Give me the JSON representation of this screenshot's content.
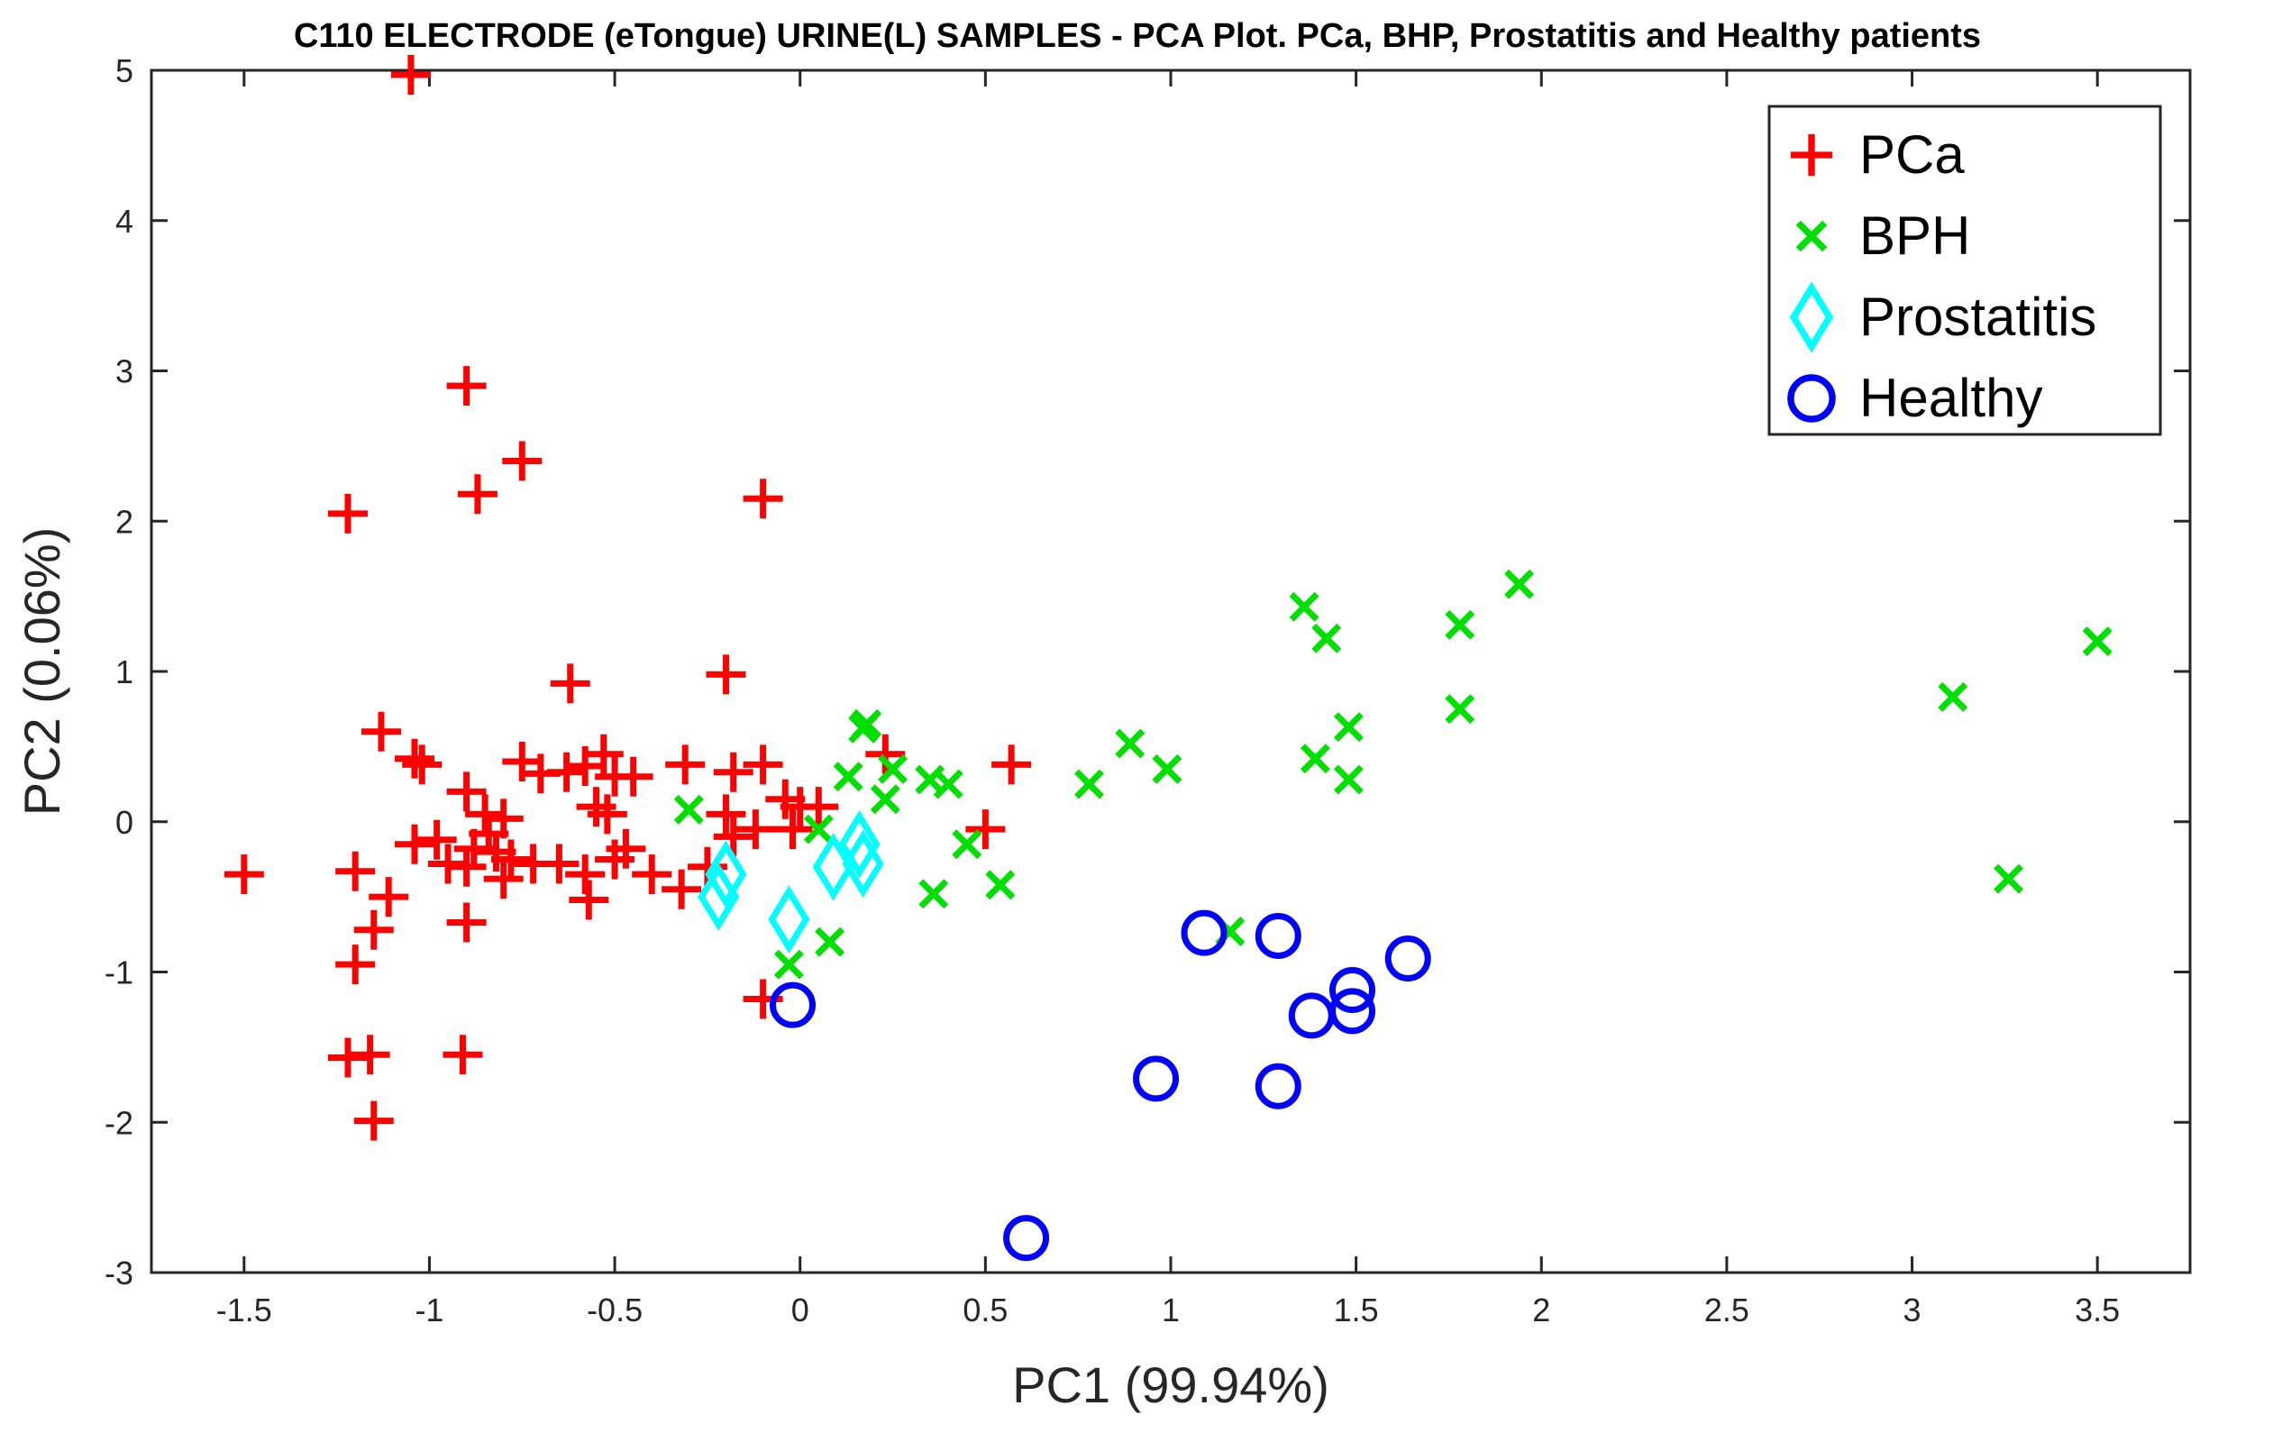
{
  "chart_data": {
    "type": "scatter",
    "title": "C110 ELECTRODE (eTongue) URINE(L) SAMPLES - PCA Plot.  PCa, BHP, Prostatitis and Healthy patients",
    "xlabel": "PC1 (99.94%)",
    "ylabel": "PC2 (0.06%)",
    "xlim": [
      -1.75,
      3.75
    ],
    "ylim": [
      -3,
      5
    ],
    "xticks": [
      -1.5,
      -1,
      -0.5,
      0,
      0.5,
      1,
      1.5,
      2,
      2.5,
      3,
      3.5
    ],
    "xtick_labels": [
      "-1.5",
      "-1",
      "-0.5",
      "0",
      "0.5",
      "1",
      "1.5",
      "2",
      "2.5",
      "3",
      "3.5"
    ],
    "yticks": [
      -3,
      -2,
      -1,
      0,
      1,
      2,
      3,
      4,
      5
    ],
    "ytick_labels": [
      "-3",
      "-2",
      "-1",
      "0",
      "1",
      "2",
      "3",
      "4",
      "5"
    ],
    "grid": false,
    "legend_position": "top-right",
    "series": [
      {
        "name": "PCa",
        "marker": "plus",
        "color": "#ff0000",
        "points": [
          [
            -1.05,
            4.97
          ],
          [
            -0.9,
            2.9
          ],
          [
            -0.75,
            2.4
          ],
          [
            -0.87,
            2.18
          ],
          [
            -1.22,
            2.05
          ],
          [
            -0.1,
            2.15
          ],
          [
            -0.2,
            0.98
          ],
          [
            -0.62,
            0.92
          ],
          [
            -1.13,
            0.6
          ],
          [
            -1.04,
            0.42
          ],
          [
            -1.02,
            0.38
          ],
          [
            -0.75,
            0.4
          ],
          [
            -0.7,
            0.32
          ],
          [
            -0.63,
            0.33
          ],
          [
            -0.58,
            0.37
          ],
          [
            -0.53,
            0.45
          ],
          [
            -0.5,
            0.3
          ],
          [
            -0.45,
            0.3
          ],
          [
            -0.31,
            0.38
          ],
          [
            -0.18,
            0.33
          ],
          [
            -0.1,
            0.38
          ],
          [
            -0.04,
            0.15
          ],
          [
            0.0,
            0.1
          ],
          [
            0.05,
            0.1
          ],
          [
            0.23,
            0.45
          ],
          [
            0.57,
            0.38
          ],
          [
            -0.9,
            0.2
          ],
          [
            -0.85,
            0.05
          ],
          [
            -0.8,
            0.02
          ],
          [
            -0.55,
            0.1
          ],
          [
            -0.52,
            0.05
          ],
          [
            -0.84,
            -0.08
          ],
          [
            -0.88,
            -0.18
          ],
          [
            -0.82,
            -0.2
          ],
          [
            -0.78,
            -0.25
          ],
          [
            -0.72,
            -0.28
          ],
          [
            -0.95,
            -0.28
          ],
          [
            -1.04,
            -0.15
          ],
          [
            -0.98,
            -0.12
          ],
          [
            -0.9,
            -0.3
          ],
          [
            -0.8,
            -0.38
          ],
          [
            -0.65,
            -0.28
          ],
          [
            -0.58,
            -0.35
          ],
          [
            -0.5,
            -0.25
          ],
          [
            -0.47,
            -0.18
          ],
          [
            -0.4,
            -0.35
          ],
          [
            -0.32,
            -0.45
          ],
          [
            -0.57,
            -0.52
          ],
          [
            -0.25,
            -0.3
          ],
          [
            -0.18,
            -0.1
          ],
          [
            -0.2,
            0.05
          ],
          [
            -0.12,
            -0.05
          ],
          [
            0.5,
            -0.05
          ],
          [
            -0.02,
            -0.05
          ],
          [
            -1.5,
            -0.35
          ],
          [
            -1.2,
            -0.33
          ],
          [
            -1.11,
            -0.5
          ],
          [
            -1.15,
            -0.72
          ],
          [
            -1.2,
            -0.95
          ],
          [
            -0.9,
            -0.67
          ],
          [
            -1.22,
            -1.57
          ],
          [
            -1.16,
            -1.55
          ],
          [
            -0.91,
            -1.55
          ],
          [
            -1.15,
            -1.99
          ],
          [
            -0.1,
            -1.18
          ]
        ]
      },
      {
        "name": "BPH",
        "marker": "x",
        "color": "#00e000",
        "points": [
          [
            -0.3,
            0.08
          ],
          [
            0.05,
            -0.05
          ],
          [
            0.13,
            0.3
          ],
          [
            0.17,
            0.62
          ],
          [
            0.18,
            0.65
          ],
          [
            0.23,
            0.15
          ],
          [
            0.25,
            0.35
          ],
          [
            0.35,
            0.28
          ],
          [
            0.4,
            0.25
          ],
          [
            0.45,
            -0.15
          ],
          [
            0.36,
            -0.48
          ],
          [
            0.54,
            -0.42
          ],
          [
            0.08,
            -0.8
          ],
          [
            -0.03,
            -0.95
          ],
          [
            0.78,
            0.25
          ],
          [
            0.89,
            0.52
          ],
          [
            0.99,
            0.35
          ],
          [
            1.16,
            -0.73
          ],
          [
            1.36,
            1.43
          ],
          [
            1.42,
            1.22
          ],
          [
            1.39,
            0.42
          ],
          [
            1.48,
            0.63
          ],
          [
            1.48,
            0.28
          ],
          [
            1.78,
            1.31
          ],
          [
            1.78,
            0.75
          ],
          [
            1.94,
            1.58
          ],
          [
            3.11,
            0.83
          ],
          [
            3.26,
            -0.38
          ],
          [
            3.5,
            1.2
          ]
        ]
      },
      {
        "name": "Prostatitis",
        "marker": "diamond",
        "color": "#00ffff",
        "points": [
          [
            -0.2,
            -0.35
          ],
          [
            -0.22,
            -0.5
          ],
          [
            -0.03,
            -0.65
          ],
          [
            0.09,
            -0.3
          ],
          [
            0.16,
            -0.15
          ],
          [
            0.17,
            -0.28
          ]
        ]
      },
      {
        "name": "Healthy",
        "marker": "circle",
        "color": "#0000ff",
        "points": [
          [
            -0.02,
            -1.22
          ],
          [
            0.61,
            -2.77
          ],
          [
            0.96,
            -1.71
          ],
          [
            1.09,
            -0.74
          ],
          [
            1.29,
            -0.76
          ],
          [
            1.29,
            -1.76
          ],
          [
            1.38,
            -1.29
          ],
          [
            1.49,
            -1.12
          ],
          [
            1.49,
            -1.26
          ],
          [
            1.64,
            -0.91
          ]
        ]
      }
    ]
  }
}
